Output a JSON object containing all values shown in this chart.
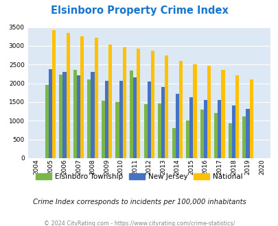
{
  "title": "Elsinboro Property Crime Index",
  "years": [
    2004,
    2005,
    2006,
    2007,
    2008,
    2009,
    2010,
    2011,
    2012,
    2013,
    2014,
    2015,
    2016,
    2017,
    2018,
    2019,
    2020
  ],
  "elsinboro": [
    0,
    1960,
    2230,
    2360,
    2100,
    1530,
    1500,
    2340,
    1450,
    1470,
    800,
    1000,
    1300,
    1200,
    930,
    1110,
    0
  ],
  "new_jersey": [
    0,
    2370,
    2300,
    2210,
    2310,
    2070,
    2070,
    2160,
    2050,
    1910,
    1720,
    1620,
    1560,
    1560,
    1410,
    1320,
    0
  ],
  "national": [
    0,
    3420,
    3340,
    3260,
    3210,
    3040,
    2960,
    2920,
    2870,
    2740,
    2600,
    2500,
    2460,
    2360,
    2210,
    2110,
    0
  ],
  "elsinboro_color": "#7ab648",
  "nj_color": "#4472c4",
  "national_color": "#ffc000",
  "bg_color": "#dce9f5",
  "grid_color": "#ffffff",
  "ylim": [
    0,
    3500
  ],
  "yticks": [
    0,
    500,
    1000,
    1500,
    2000,
    2500,
    3000,
    3500
  ],
  "subtitle": "Crime Index corresponds to incidents per 100,000 inhabitants",
  "footer": "© 2024 CityRating.com - https://www.cityrating.com/crime-statistics/",
  "title_color": "#1874cd",
  "subtitle_color": "#1a1a1a",
  "footer_color": "#888888"
}
